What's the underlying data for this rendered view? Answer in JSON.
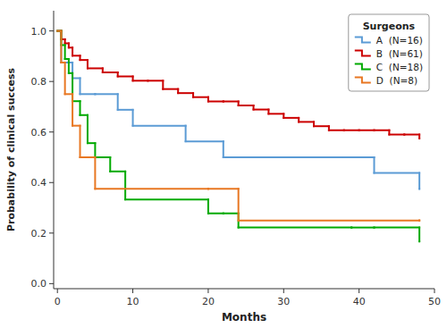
{
  "chart_data": {
    "type": "step",
    "title": "Surgeons",
    "x_label": "Months",
    "y_label": "Probability of clinical success",
    "xlim": [
      -0.5,
      50
    ],
    "ylim": [
      -0.02,
      1.08
    ],
    "xticks": [
      0,
      10,
      20,
      30,
      40,
      50
    ],
    "yticks": [
      {
        "value": 0.0,
        "label": "0.0"
      },
      0.2,
      0.4,
      0.6,
      0.8,
      {
        "value": 1.0,
        "label": "1.0"
      }
    ],
    "legend": "upper right",
    "series": [
      {
        "name": "A  (N=16)",
        "color": "#5B9BD5",
        "x": [
          0,
          0.5,
          1,
          2,
          3,
          5,
          8,
          10,
          17,
          22,
          38,
          42,
          48
        ],
        "values": [
          1.0,
          0.875,
          0.875,
          0.813,
          0.75,
          0.75,
          0.688,
          0.625,
          0.563,
          0.5,
          0.5,
          0.438,
          0.375
        ]
      },
      {
        "name": "B  (N=61)",
        "color": "#CC0000",
        "x": [
          0,
          0.5,
          1,
          1.5,
          2,
          3,
          4,
          6,
          8,
          10,
          12,
          14,
          16,
          18,
          20,
          22,
          24,
          26,
          28,
          30,
          32,
          34,
          36,
          38,
          40,
          42,
          44,
          46,
          48
        ],
        "values": [
          1.0,
          0.967,
          0.951,
          0.934,
          0.902,
          0.885,
          0.852,
          0.836,
          0.82,
          0.803,
          0.803,
          0.77,
          0.754,
          0.738,
          0.721,
          0.721,
          0.705,
          0.689,
          0.672,
          0.656,
          0.64,
          0.623,
          0.607,
          0.607,
          0.607,
          0.607,
          0.59,
          0.59,
          0.575
        ]
      },
      {
        "name": "C  (N=18)",
        "color": "#00AA00",
        "x": [
          0,
          0.5,
          1,
          1.5,
          2,
          3,
          4,
          5,
          7,
          9,
          20,
          22,
          24,
          39,
          42,
          48
        ],
        "values": [
          1.0,
          0.944,
          0.889,
          0.833,
          0.722,
          0.667,
          0.556,
          0.5,
          0.444,
          0.333,
          0.278,
          0.278,
          0.222,
          0.222,
          0.222,
          0.167
        ]
      },
      {
        "name": "D  (N=8)",
        "color": "#E87722",
        "x": [
          0,
          0.5,
          1,
          2,
          3,
          5,
          20,
          24,
          48
        ],
        "values": [
          1.0,
          0.875,
          0.75,
          0.625,
          0.5,
          0.375,
          0.375,
          0.25,
          0.25
        ]
      }
    ]
  }
}
